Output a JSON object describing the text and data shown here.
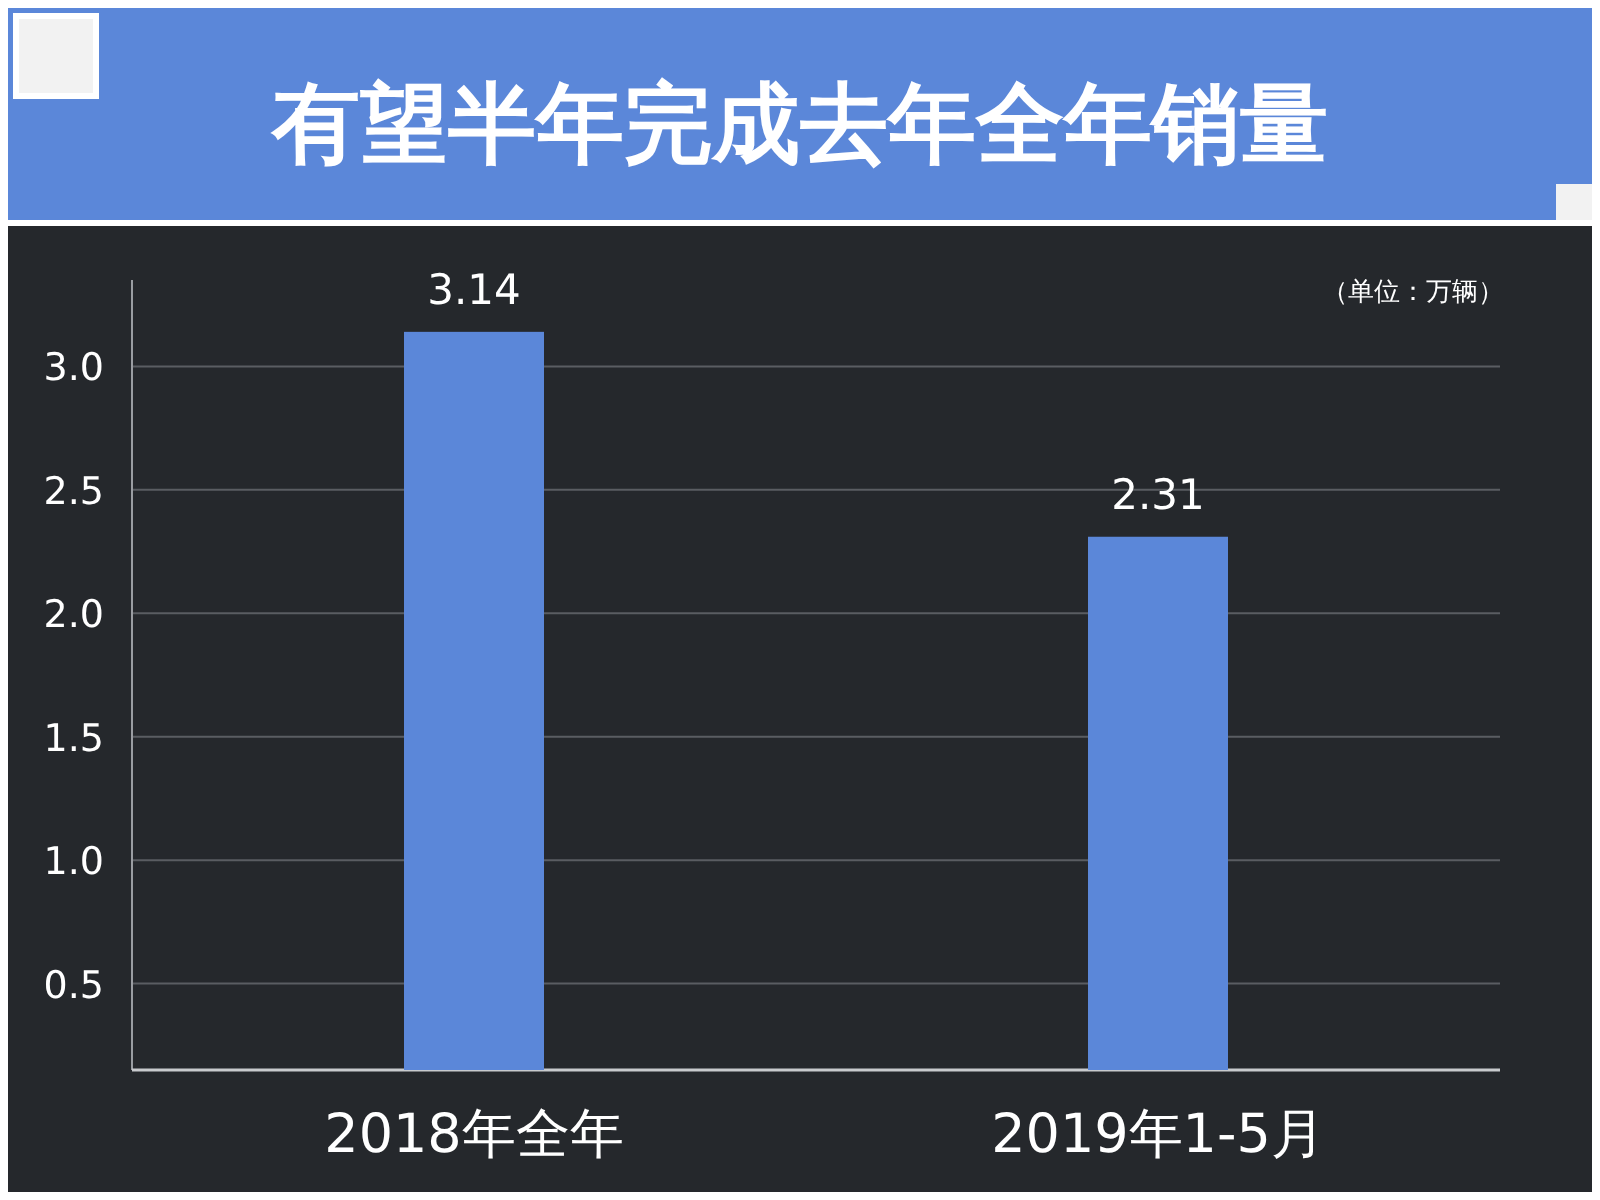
{
  "chart_data": {
    "type": "bar",
    "title": "有望半年完成去年全年销量",
    "annotations": [
      "（单位：万辆）"
    ],
    "categories": [
      "2018年全年",
      "2019年1-5月"
    ],
    "values": [
      3.14,
      2.31
    ],
    "color": "#5b87d9",
    "ylim": [
      0.15,
      3.35
    ],
    "yticks": [
      0.5,
      {
        "value": 1,
        "label": "1.0"
      },
      1.5,
      {
        "value": 2,
        "label": "2.0"
      },
      2.5,
      {
        "value": 3,
        "label": "3.0"
      }
    ],
    "grid": "y",
    "data_labels": true
  }
}
